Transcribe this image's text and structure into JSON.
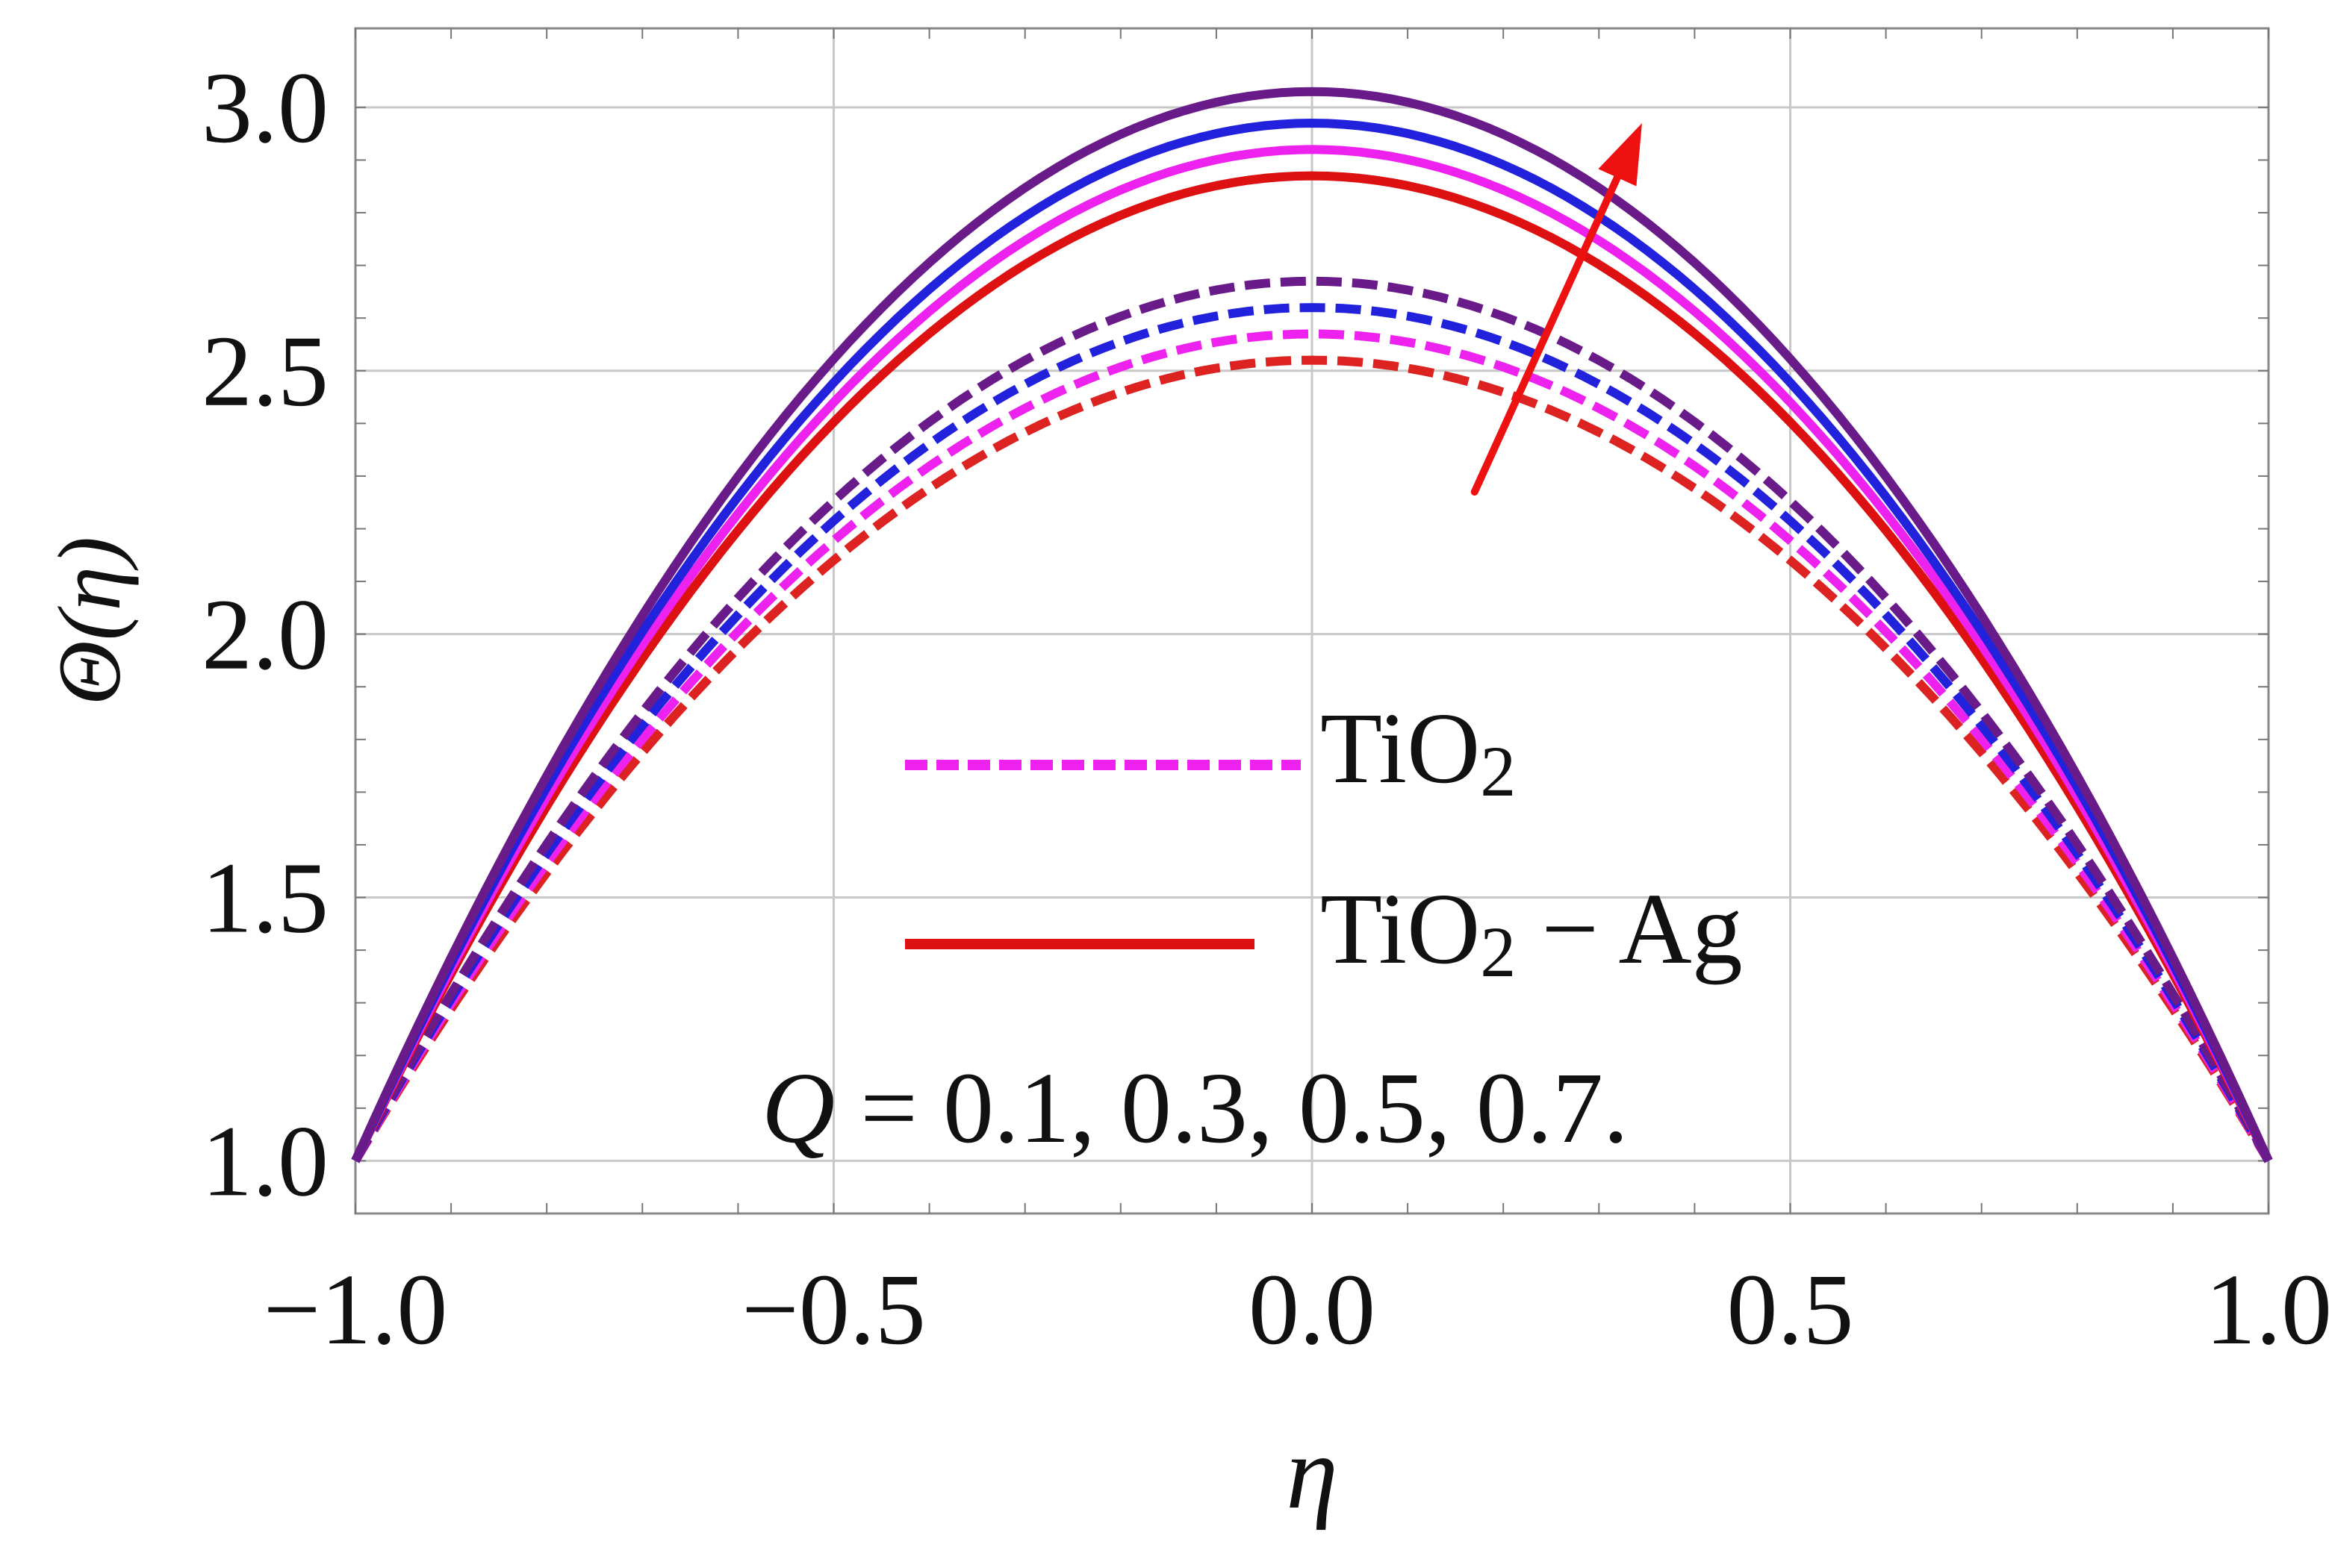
{
  "chart_data": {
    "type": "line",
    "title": "",
    "xlabel": "η",
    "ylabel": "Θ(η)",
    "xlim": [
      -1.0,
      1.0
    ],
    "ylim": [
      0.9,
      3.15
    ],
    "grid": true,
    "x_ticks": [
      "−1.0",
      "−0.5",
      "0.0",
      "0.5",
      "1.0"
    ],
    "y_ticks": [
      "1.0",
      "1.5",
      "2.0",
      "2.5",
      "3.0"
    ],
    "legend": {
      "placement": "center",
      "entries": [
        {
          "label": "TiO",
          "subscript": "2",
          "suffix": "",
          "style": "dashed",
          "color": "#ee22ee"
        },
        {
          "label": "TiO",
          "subscript": "2",
          "suffix": " − Ag",
          "style": "solid",
          "color": "#dd1111"
        }
      ]
    },
    "annotation": {
      "variable": "Q",
      "text": " = 0.1, 0.3, 0.5, 0.7.",
      "arrow_color": "#ee1111",
      "arrow_direction": "increasing Q"
    },
    "profile": "parabolic: 1 + (peak - 1)(1 - η²)",
    "series": [
      {
        "group": "TiO2",
        "style": "dashed",
        "Q": 0.1,
        "color": "#dd2222",
        "peak": 2.52
      },
      {
        "group": "TiO2",
        "style": "dashed",
        "Q": 0.3,
        "color": "#ee22ee",
        "peak": 2.57
      },
      {
        "group": "TiO2",
        "style": "dashed",
        "Q": 0.5,
        "color": "#2222dd",
        "peak": 2.62
      },
      {
        "group": "TiO2",
        "style": "dashed",
        "Q": 0.7,
        "color": "#6a1b8a",
        "peak": 2.67
      },
      {
        "group": "TiO2 − Ag",
        "style": "solid",
        "Q": 0.1,
        "color": "#dd1111",
        "peak": 2.87
      },
      {
        "group": "TiO2 − Ag",
        "style": "solid",
        "Q": 0.3,
        "color": "#ee22ee",
        "peak": 2.92
      },
      {
        "group": "TiO2 − Ag",
        "style": "solid",
        "Q": 0.5,
        "color": "#2222dd",
        "peak": 2.97
      },
      {
        "group": "TiO2 − Ag",
        "style": "solid",
        "Q": 0.7,
        "color": "#6a1b8a",
        "peak": 3.03
      }
    ]
  }
}
